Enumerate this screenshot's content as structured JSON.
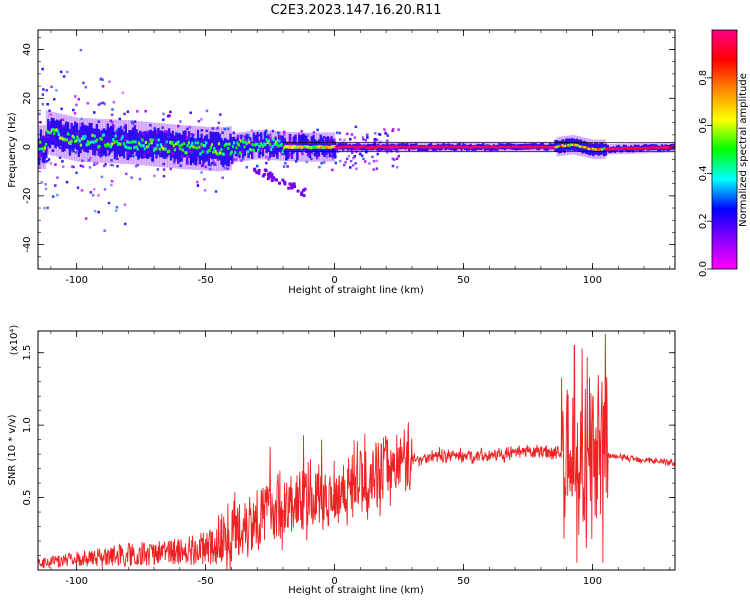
{
  "figure": {
    "title": "C2E3.2023.147.16.20.R11"
  },
  "chart_data": [
    {
      "type": "heatmap",
      "title": "C2E3.2023.147.16.20.R11",
      "xlabel": "Height of straight line (km)",
      "ylabel": "Frequency (Hz)",
      "xlim": [
        -115,
        132
      ],
      "ylim": [
        -50,
        48
      ],
      "x_ticks": [
        -100,
        -50,
        0,
        50,
        100
      ],
      "y_ticks": [
        -40,
        -20,
        0,
        20,
        40
      ],
      "colorbar": {
        "label": "Normalized spectral amplitude",
        "range": [
          0,
          1
        ],
        "ticks": [
          "0.0",
          "0.2",
          "0.4",
          "0.6",
          "0.8"
        ],
        "colormap": [
          "#ff00ff",
          "#8800ff",
          "#0000ff",
          "#00ffff",
          "#00ff00",
          "#ffff00",
          "#ff8800",
          "#ff0000",
          "#ff0088"
        ]
      },
      "ridge": [
        {
          "x": -112,
          "f": 6
        },
        {
          "x": -100,
          "f": 3
        },
        {
          "x": -80,
          "f": 2
        },
        {
          "x": -60,
          "f": 0
        },
        {
          "x": -45,
          "f": -1
        },
        {
          "x": -30,
          "f": 1
        },
        {
          "x": -15,
          "f": 0
        },
        {
          "x": 0,
          "f": 0
        },
        {
          "x": 50,
          "f": 0
        },
        {
          "x": 85,
          "f": 0
        },
        {
          "x": 92,
          "f": 1
        },
        {
          "x": 100,
          "f": -1
        },
        {
          "x": 132,
          "f": 0
        }
      ]
    },
    {
      "type": "line",
      "xlabel": "Height of straight line (km)",
      "ylabel": "SNR (10 * v/v)",
      "multiplier": "(x10⁴)",
      "xlim": [
        -115,
        132
      ],
      "ylim": [
        0,
        1.65
      ],
      "x_ticks": [
        -100,
        -50,
        0,
        50,
        100
      ],
      "y_ticks": [
        "0.5",
        "1.0",
        "1.5"
      ],
      "color": "#ee2222",
      "envelope": [
        {
          "x": -115,
          "y": 0.05
        },
        {
          "x": -100,
          "y": 0.08
        },
        {
          "x": -80,
          "y": 0.12
        },
        {
          "x": -60,
          "y": 0.14
        },
        {
          "x": -45,
          "y": 0.18
        },
        {
          "x": -35,
          "y": 0.32
        },
        {
          "x": -25,
          "y": 0.42
        },
        {
          "x": -15,
          "y": 0.45
        },
        {
          "x": -5,
          "y": 0.5
        },
        {
          "x": 5,
          "y": 0.58
        },
        {
          "x": 15,
          "y": 0.66
        },
        {
          "x": 25,
          "y": 0.74
        },
        {
          "x": 40,
          "y": 0.79
        },
        {
          "x": 60,
          "y": 0.79
        },
        {
          "x": 80,
          "y": 0.82
        },
        {
          "x": 90,
          "y": 0.8
        },
        {
          "x": 95,
          "y": 0.7
        },
        {
          "x": 100,
          "y": 0.72
        },
        {
          "x": 104,
          "y": 0.8
        },
        {
          "x": 110,
          "y": 0.78
        },
        {
          "x": 132,
          "y": 0.74
        }
      ],
      "spikes": [
        {
          "x": -25,
          "y": 0.85
        },
        {
          "x": -12,
          "y": 0.93
        },
        {
          "x": -5,
          "y": 0.9
        },
        {
          "x": 10,
          "y": 0.82
        },
        {
          "x": 27,
          "y": 0.97
        },
        {
          "x": 93,
          "y": 1.55
        },
        {
          "x": 96,
          "y": 1.53
        },
        {
          "x": 98,
          "y": 1.47
        },
        {
          "x": 105,
          "y": 1.63
        },
        {
          "x": 94,
          "y": 0.05
        },
        {
          "x": 104,
          "y": 0.05
        }
      ]
    }
  ]
}
